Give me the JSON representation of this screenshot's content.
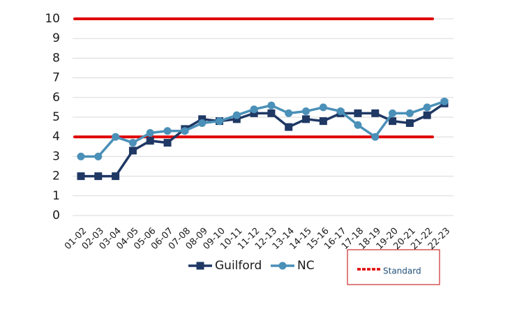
{
  "chart_data": {
    "type": "line",
    "categories": [
      "01-02",
      "02-03",
      "03-04",
      "04-05",
      "05-06",
      "06-07",
      "07-08",
      "08-09",
      "09-10",
      "10-11",
      "11-12",
      "12-13",
      "13-14",
      "14-15",
      "15-16",
      "16-17",
      "17-18",
      "18-19",
      "19-20",
      "20-21",
      "21-22",
      "22-23"
    ],
    "series": [
      {
        "name": "Guilford",
        "color": "#1f3864",
        "marker": "square",
        "values": [
          2,
          2,
          2,
          3.3,
          3.8,
          3.7,
          4.4,
          4.9,
          4.8,
          4.9,
          5.2,
          5.2,
          4.5,
          4.9,
          4.8,
          5.2,
          5.2,
          5.2,
          4.8,
          4.7,
          5.1,
          5.7
        ]
      },
      {
        "name": "NC",
        "color": "#4a90b8",
        "marker": "circle",
        "values": [
          3,
          3,
          4,
          3.7,
          4.2,
          4.3,
          4.3,
          4.7,
          4.8,
          5.1,
          5.4,
          5.6,
          5.2,
          5.3,
          5.5,
          5.3,
          4.6,
          4.0,
          5.2,
          5.2,
          5.5,
          5.8
        ]
      }
    ],
    "standard": {
      "name": "Standard",
      "color": "#e00000",
      "values": [
        10,
        4
      ]
    },
    "ylim": [
      0,
      10
    ],
    "yticks": [
      0,
      1,
      2,
      3,
      4,
      5,
      6,
      7,
      8,
      9,
      10
    ],
    "grid": true
  }
}
